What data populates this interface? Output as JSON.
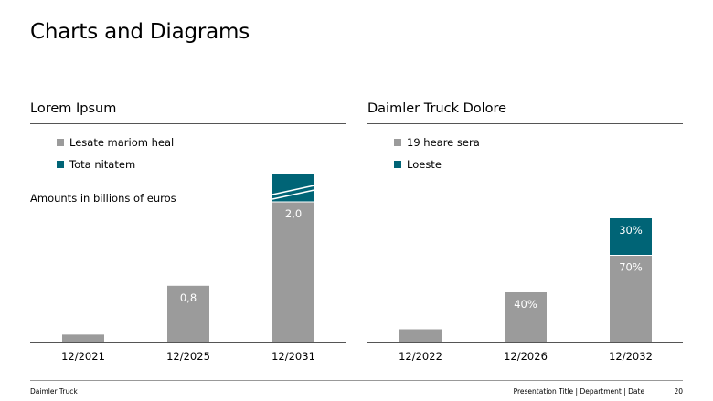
{
  "page_title": "Charts and Diagrams",
  "colors": {
    "grey": "#9b9b9b",
    "teal": "#006476",
    "rule": "#555555"
  },
  "chart_data": [
    {
      "type": "bar",
      "title": "Lorem Ipsum",
      "note": "Amounts in billions of euros",
      "categories": [
        "12/2021",
        "12/2025",
        "12/2031"
      ],
      "series": [
        {
          "name": "Lesate mariom heal",
          "values": [
            0.1,
            0.8,
            2.0
          ],
          "labels": [
            "",
            "0,8",
            "2,0"
          ]
        },
        {
          "name": "Tota nitatem",
          "values": [
            0,
            0,
            0.4
          ],
          "labels": [
            "",
            "",
            ""
          ]
        }
      ],
      "axis_break_on": "12/2031",
      "legend": "top-left",
      "grid": false
    },
    {
      "type": "bar",
      "title": "Daimler Truck Dolore",
      "categories": [
        "12/2022",
        "12/2026",
        "12/2032"
      ],
      "series": [
        {
          "name": "19 heare sera",
          "values": [
            10,
            40,
            70
          ],
          "labels": [
            "",
            "40%",
            "70%"
          ]
        },
        {
          "name": "Loeste",
          "values": [
            0,
            0,
            30
          ],
          "labels": [
            "",
            "",
            "30%"
          ]
        }
      ],
      "legend": "top-left",
      "grid": false
    }
  ],
  "footer": {
    "left": "Daimler Truck",
    "center": "Presentation Title | Department | Date",
    "page": "20"
  }
}
